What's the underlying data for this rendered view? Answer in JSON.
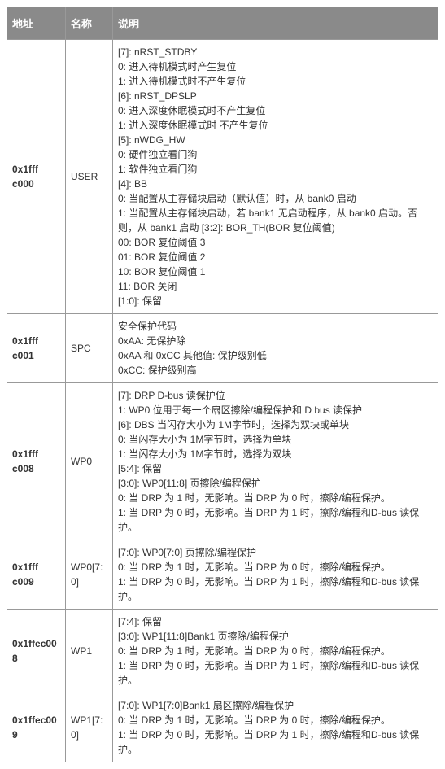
{
  "header": {
    "addr": "地址",
    "name": "名称",
    "desc": "说明"
  },
  "rows": [
    {
      "addr": "0x1fff c000",
      "name": "USER",
      "desc": "[7]: nRST_STDBY\n0: 进入待机模式时产生复位\n1: 进入待机模式时不产生复位\n[6]: nRST_DPSLP\n0: 进入深度休眠模式时不产生复位\n1: 进入深度休眠模式时 不产生复位\n[5]: nWDG_HW\n0: 硬件独立看门狗\n1: 软件独立看门狗\n[4]: BB\n0: 当配置从主存储块启动（默认值）时，从 bank0 启动\n1: 当配置从主存储块启动，若 bank1 无启动程序，从 bank0 启动。否则，从 bank1 启动 [3:2]: BOR_TH(BOR 复位阈值)\n00: BOR 复位阈值 3\n01: BOR 复位阈值 2\n10: BOR 复位阈值 1\n11: BOR 关闭\n[1:0]: 保留"
    },
    {
      "addr": "0x1fff c001",
      "name": "SPC",
      "desc": "安全保护代码\n0xAA: 无保护除\n0xAA 和 0xCC 其他值: 保护级别低\n0xCC: 保护级别高"
    },
    {
      "addr": "0x1fff c008",
      "name": "WP0",
      "desc": "[7]: DRP  D-bus 读保护位\n1: WP0 位用于每一个扇区擦除/编程保护和 D bus 读保护\n[6]: DBS 当闪存大小为 1M字节时，选择为双块或单块\n0: 当闪存大小为 1M字节时，选择为单块\n1: 当闪存大小为 1M字节时，选择为双块\n[5:4]: 保留\n[3:0]: WP0[11:8] 页擦除/编程保护\n0: 当 DRP 为 1 时，无影响。当 DRP 为 0 时，擦除/编程保护。\n1: 当 DRP 为 0 时，无影响。当 DRP 为 1 时，擦除/编程和D-bus 读保护。"
    },
    {
      "addr": "0x1fff c009",
      "name": "WP0[7:0]",
      "desc": "[7:0]: WP0[7:0] 页擦除/编程保护\n0: 当 DRP 为 1 时，无影响。当 DRP 为 0 时，擦除/编程保护。\n1: 当 DRP 为 0 时，无影响。当 DRP 为 1 时，擦除/编程和D-bus 读保护。"
    },
    {
      "addr": "0x1ffec008",
      "name": "WP1",
      "desc": "[7:4]: 保留\n[3:0]: WP1[11:8]Bank1 页擦除/编程保护\n0: 当 DRP 为 1 时，无影响。当 DRP 为 0 时，擦除/编程保护。\n1: 当 DRP 为 0 时，无影响。当 DRP 为 1 时，擦除/编程和D-bus 读保护。"
    },
    {
      "addr": "0x1ffec009",
      "name": "WP1[7:0]",
      "desc": "[7:0]: WP1[7:0]Bank1 扇区擦除/编程保护\n0: 当 DRP 为 1 时，无影响。当 DRP 为 0 时，擦除/编程保护。\n1: 当 DRP 为 0 时，无影响。当 DRP 为 1 时，擦除/编程和D-bus 读保护。"
    }
  ]
}
